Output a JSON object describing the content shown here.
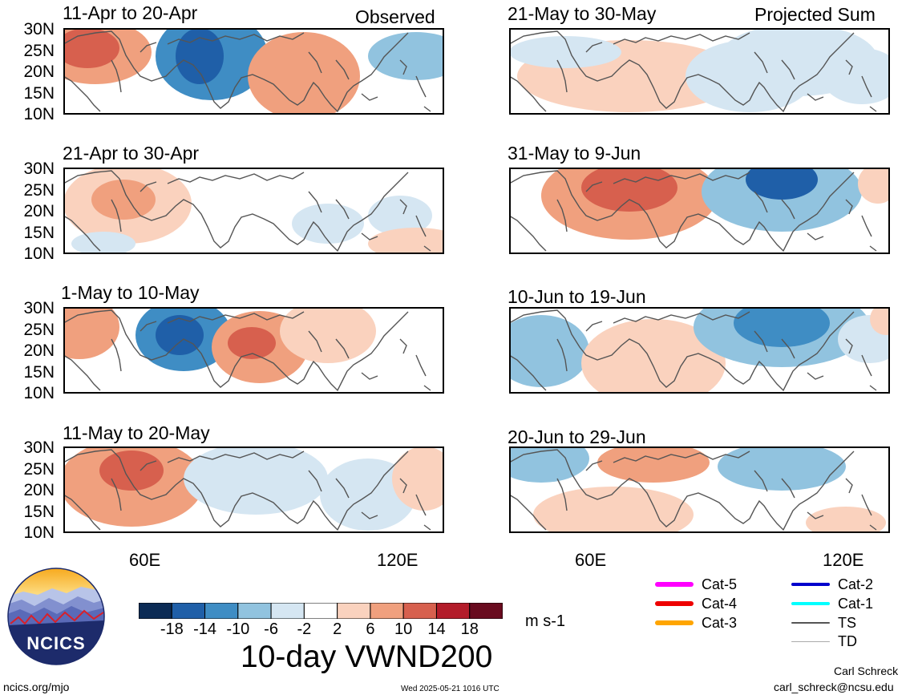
{
  "panels": [
    {
      "title": "11-Apr to 20-Apr",
      "tag": "Observed"
    },
    {
      "title": "21-Apr to 30-Apr",
      "tag": ""
    },
    {
      "title": "1-May to 10-May",
      "tag": ""
    },
    {
      "title": "11-May to 20-May",
      "tag": ""
    },
    {
      "title": "21-May to 30-May",
      "tag": "Projected Sum"
    },
    {
      "title": "31-May to 9-Jun",
      "tag": ""
    },
    {
      "title": "10-Jun to 19-Jun",
      "tag": ""
    },
    {
      "title": "20-Jun to 29-Jun",
      "tag": ""
    }
  ],
  "lat_labels": [
    "30N",
    "25N",
    "20N",
    "15N",
    "10N"
  ],
  "lon_labels": [
    "60E",
    "120E"
  ],
  "colorbar": {
    "title": "10-day VWND200",
    "units": "m s-1",
    "ticks": [
      "-18",
      "-14",
      "-10",
      "-6",
      "-2",
      "2",
      "6",
      "10",
      "14",
      "18"
    ],
    "colors": [
      "#0b2b55",
      "#1f5fa8",
      "#3f8dc4",
      "#91c3df",
      "#d5e6f2",
      "#ffffff",
      "#fad2be",
      "#f0a07e",
      "#d7604e",
      "#b31c2a",
      "#690b1f"
    ]
  },
  "legend": [
    {
      "label": "Cat-5",
      "color": "#ff00ff"
    },
    {
      "label": "Cat-4",
      "color": "#ee0000"
    },
    {
      "label": "Cat-3",
      "color": "#ffa500"
    },
    {
      "label": "Cat-2",
      "color": "#0000cc"
    },
    {
      "label": "Cat-1",
      "color": "#00ffff"
    },
    {
      "label": "TS",
      "color": "#555555"
    },
    {
      "label": "TD",
      "color": "#aaaaaa"
    }
  ],
  "logo_text": "NCICS",
  "footer": {
    "site": "ncics.org/mjo",
    "timestamp": "Wed 2025-05-21 1016 UTC",
    "author": "Carl Schreck",
    "email": "carl_schreck@ncsu.edu"
  }
}
